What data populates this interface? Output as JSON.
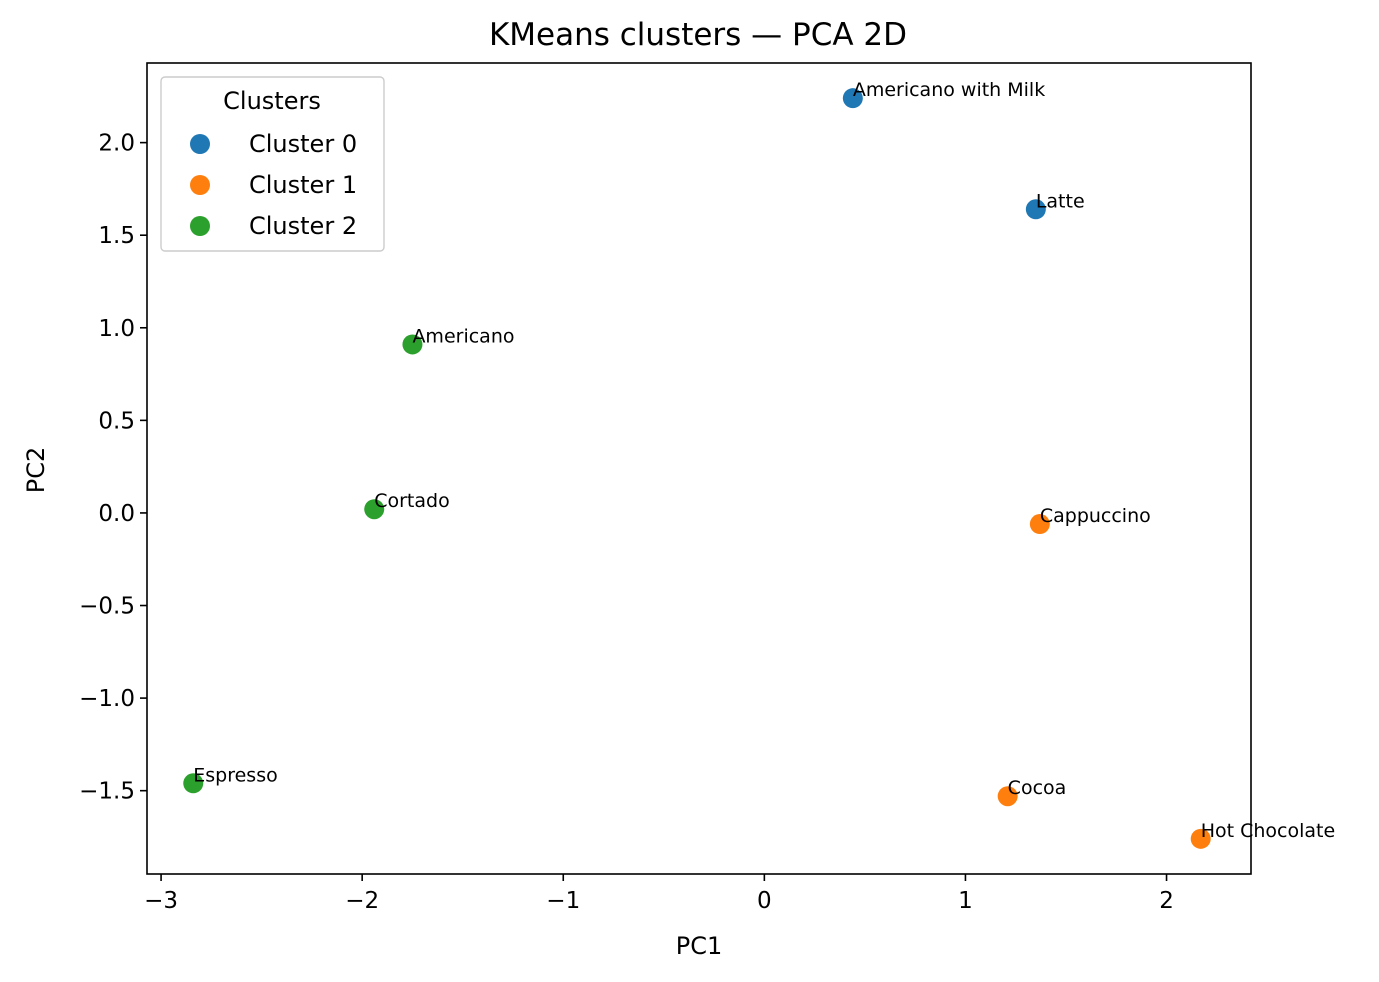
{
  "chart_data": {
    "type": "scatter",
    "title": "KMeans clusters — PCA 2D",
    "xlabel": "PC1",
    "ylabel": "PC2",
    "xlim": [
      -3.07,
      2.42
    ],
    "ylim": [
      -1.95,
      2.43
    ],
    "xticks": [
      -3,
      -2,
      -1,
      0,
      1,
      2
    ],
    "yticks": [
      -1.5,
      -1.0,
      -0.5,
      0.0,
      0.5,
      1.0,
      1.5,
      2.0
    ],
    "xtick_labels": [
      "−3",
      "−2",
      "−1",
      "0",
      "1",
      "2"
    ],
    "ytick_labels": [
      "−1.5",
      "−1.0",
      "−0.5",
      "0.0",
      "0.5",
      "1.0",
      "1.5",
      "2.0"
    ],
    "grid": false,
    "legend": {
      "title": "Clusters",
      "placement": "top-left"
    },
    "series": [
      {
        "name": "Cluster 0",
        "color": "#1f77b4",
        "points": [
          {
            "x": 0.44,
            "y": 2.24,
            "label": "Americano with Milk"
          },
          {
            "x": 1.35,
            "y": 1.64,
            "label": "Latte"
          }
        ]
      },
      {
        "name": "Cluster 1",
        "color": "#ff7f0e",
        "points": [
          {
            "x": 1.37,
            "y": -0.06,
            "label": "Cappuccino"
          },
          {
            "x": 1.21,
            "y": -1.53,
            "label": "Cocoa"
          },
          {
            "x": 2.17,
            "y": -1.76,
            "label": "Hot Chocolate"
          }
        ]
      },
      {
        "name": "Cluster 2",
        "color": "#2ca02c",
        "points": [
          {
            "x": -1.75,
            "y": 0.91,
            "label": "Americano"
          },
          {
            "x": -1.94,
            "y": 0.02,
            "label": "Cortado"
          },
          {
            "x": -2.84,
            "y": -1.46,
            "label": "Espresso"
          }
        ]
      }
    ]
  }
}
